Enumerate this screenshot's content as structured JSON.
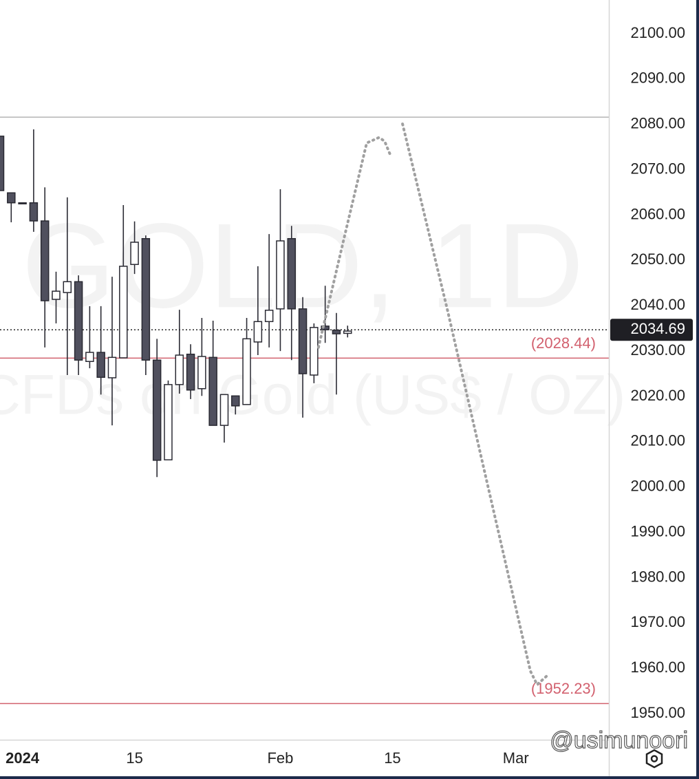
{
  "chart_data": {
    "type": "candlestick",
    "watermark": {
      "title": "GOLD, 1D",
      "subtitle": "CFDs on Gold (US$ / OZ)"
    },
    "credit": "@usimunoori",
    "x": [
      0,
      1,
      2,
      3,
      4,
      5,
      6,
      7,
      8,
      9,
      10,
      11,
      12,
      13,
      14,
      15,
      16,
      17,
      18,
      19,
      20,
      21,
      22,
      23,
      24,
      25,
      26,
      27,
      28,
      29,
      30,
      31
    ],
    "open": [
      2077.4,
      2064.9,
      2062.7,
      2062.7,
      2058.7,
      2041.4,
      2042.9,
      2045.3,
      2027.7,
      2029.7,
      2024.1,
      2028.5,
      2049.1,
      2054.8,
      2028.0,
      2006.0,
      2022.6,
      2029.3,
      2021.7,
      2028.6,
      2013.6,
      2020.1,
      2018.2,
      2032.0,
      2036.5,
      2039.3,
      2054.8,
      2039.3,
      2024.7,
      2035.5,
      2034.6,
      2033.9
    ],
    "high": [
      2077.4,
      2064.9,
      2062.7,
      2078.9,
      2066.1,
      2047.5,
      2063.9,
      2046.7,
      2039.9,
      2039.9,
      2046.4,
      2062.2,
      2058.6,
      2055.5,
      2032.7,
      2023.5,
      2039.1,
      2031.5,
      2037.3,
      2036.7,
      2020.1,
      2020.1,
      2037.3,
      2048.7,
      2055.8,
      2065.7,
      2057.6,
      2041.9,
      2036.1,
      2044.4,
      2038.4,
      2035.6
    ],
    "low": [
      2065.4,
      2058.4,
      2062.7,
      2056.3,
      2030.8,
      2036.1,
      2024.7,
      2024.7,
      2026.2,
      2020.4,
      2013.6,
      2028.5,
      2047.0,
      2024.7,
      2002.2,
      2006.0,
      2020.6,
      2019.4,
      2020.1,
      2013.6,
      2009.8,
      2016.0,
      2018.2,
      2029.1,
      2030.8,
      2030.0,
      2028.0,
      2015.3,
      2022.9,
      2031.8,
      2020.4,
      2033.0
    ],
    "close": [
      2065.4,
      2062.7,
      2062.7,
      2058.7,
      2041.1,
      2043.2,
      2045.3,
      2028.0,
      2029.7,
      2024.2,
      2028.6,
      2048.7,
      2054.0,
      2028.0,
      2005.9,
      2022.6,
      2029.1,
      2021.4,
      2028.8,
      2013.6,
      2020.4,
      2017.9,
      2032.7,
      2036.5,
      2039.0,
      2054.3,
      2039.3,
      2025.0,
      2035.2,
      2034.7,
      2033.8,
      2034.4
    ],
    "up_color": "#ffffff",
    "down_color": "#50505e",
    "projection": {
      "color": "#a0a0a0",
      "x": [
        28.4,
        30.7,
        32.7,
        33.8,
        34.3,
        34.8,
        null,
        35.9,
        39.9,
        47.3,
        47.9,
        48.8
      ],
      "y": [
        2030.8,
        2055.1,
        2075.9,
        2077.1,
        2076.3,
        2073.3,
        null,
        2080.1,
        2039.1,
        1959.4,
        1956.4,
        1958.4
      ]
    },
    "price_lines": [
      {
        "value": 2081.6,
        "color": "#b4b4b4"
      },
      {
        "value": 2028.44,
        "label": "(2028.44)",
        "color": "#d2606e"
      },
      {
        "value": 1952.23,
        "label": "(1952.23)",
        "color": "#d2606e"
      }
    ],
    "current_price": 2034.69,
    "xlim": [
      0,
      54.3
    ],
    "xticks": [
      {
        "value": 2,
        "label": "2024"
      },
      {
        "value": 12,
        "label": "15"
      },
      {
        "value": 25,
        "label": "Feb"
      },
      {
        "value": 35,
        "label": "15"
      },
      {
        "value": 46,
        "label": "Mar"
      }
    ],
    "ylim": [
      1944.24,
      2107.44
    ],
    "yticks": [
      {
        "value": 1950,
        "label": "1950.00"
      },
      {
        "value": 1960,
        "label": "1960.00"
      },
      {
        "value": 1970,
        "label": "1970.00"
      },
      {
        "value": 1980,
        "label": "1980.00"
      },
      {
        "value": 1990,
        "label": "1990.00"
      },
      {
        "value": 2000,
        "label": "2000.00"
      },
      {
        "value": 2010,
        "label": "2010.00"
      },
      {
        "value": 2020,
        "label": "2020.00"
      },
      {
        "value": 2030,
        "label": "2030.00"
      },
      {
        "value": 2040,
        "label": "2040.00"
      },
      {
        "value": 2050,
        "label": "2050.00"
      },
      {
        "value": 2060,
        "label": "2060.00"
      },
      {
        "value": 2070,
        "label": "2070.00"
      },
      {
        "value": 2080,
        "label": "2080.00"
      },
      {
        "value": 2090,
        "label": "2090.00"
      },
      {
        "value": 2100,
        "label": "2100.00"
      }
    ]
  }
}
